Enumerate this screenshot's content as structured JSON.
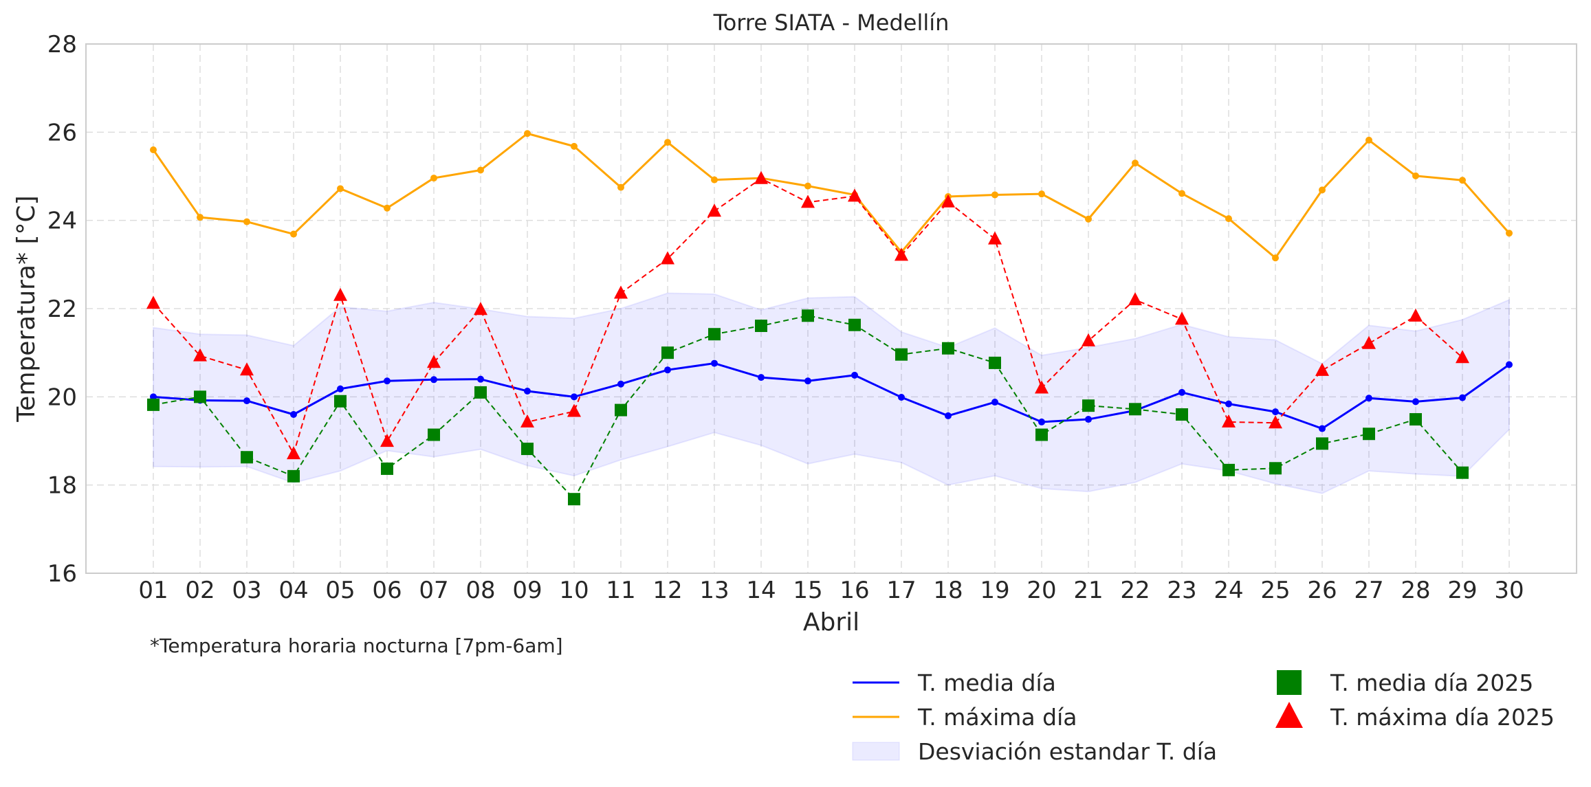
{
  "chart_data": {
    "type": "line",
    "title": "Torre SIATA - Medellín",
    "xlabel": "Abril",
    "ylabel": "Temperatura* [°C]",
    "note": "*Temperatura horaria nocturna [7pm-6am]",
    "ylim": [
      16,
      28
    ],
    "yticks": [
      16,
      18,
      20,
      22,
      24,
      26,
      28
    ],
    "grid": true,
    "legend_position": "bottom-right",
    "categories": [
      "01",
      "02",
      "03",
      "04",
      "05",
      "06",
      "07",
      "08",
      "09",
      "10",
      "11",
      "12",
      "13",
      "14",
      "15",
      "16",
      "17",
      "18",
      "19",
      "20",
      "21",
      "22",
      "23",
      "24",
      "25",
      "26",
      "27",
      "28",
      "29",
      "30"
    ],
    "series": [
      {
        "name": "T. media día",
        "style": "line",
        "color": "#0000ff",
        "values": [
          20.0,
          19.92,
          19.91,
          19.6,
          20.18,
          20.36,
          20.39,
          20.4,
          20.13,
          20.0,
          20.29,
          20.61,
          20.76,
          20.44,
          20.36,
          20.49,
          19.99,
          19.57,
          19.88,
          19.43,
          19.49,
          19.69,
          20.1,
          19.84,
          19.66,
          19.28,
          19.97,
          19.89,
          19.98,
          20.73
        ]
      },
      {
        "name": "T. máxima día",
        "style": "line",
        "color": "#ffa500",
        "values": [
          25.6,
          24.07,
          23.97,
          23.69,
          24.72,
          24.28,
          24.96,
          25.14,
          25.97,
          25.68,
          24.75,
          25.77,
          24.92,
          24.96,
          24.78,
          24.58,
          23.28,
          24.54,
          24.58,
          24.6,
          24.03,
          25.3,
          24.61,
          24.04,
          23.15,
          24.69,
          25.82,
          25.01,
          24.91,
          23.71
        ]
      },
      {
        "name": "Desviación estandar T. día",
        "style": "band",
        "color": "#0000ff",
        "upper": [
          21.57,
          21.42,
          21.4,
          21.16,
          22.04,
          21.94,
          22.14,
          21.99,
          21.82,
          21.78,
          22.0,
          22.35,
          22.33,
          21.97,
          22.24,
          22.27,
          21.47,
          21.12,
          21.56,
          20.94,
          21.12,
          21.32,
          21.64,
          21.36,
          21.29,
          20.75,
          21.62,
          21.49,
          21.75,
          22.2
        ],
        "lower": [
          18.42,
          18.41,
          18.42,
          18.05,
          18.32,
          18.78,
          18.64,
          18.81,
          18.44,
          18.21,
          18.57,
          18.87,
          19.19,
          18.9,
          18.48,
          18.7,
          18.51,
          18.0,
          18.21,
          17.92,
          17.85,
          18.06,
          18.48,
          18.32,
          18.03,
          17.81,
          18.32,
          18.25,
          18.2,
          19.26
        ]
      },
      {
        "name": "T. media día 2025",
        "style": "dashed-marker",
        "marker": "square",
        "color": "#008000",
        "values": [
          19.82,
          20.0,
          18.63,
          18.2,
          19.9,
          18.37,
          19.14,
          20.1,
          18.82,
          17.68,
          19.7,
          21.0,
          21.42,
          21.61,
          21.84,
          21.63,
          20.96,
          21.1,
          20.77,
          19.14,
          19.8,
          19.72,
          19.6,
          18.34,
          18.38,
          18.94,
          19.16,
          19.49,
          18.28,
          null
        ]
      },
      {
        "name": "T. máxima día 2025",
        "style": "dashed-marker",
        "marker": "triangle",
        "color": "#ff0000",
        "values": [
          22.12,
          20.93,
          20.61,
          18.71,
          22.3,
          18.99,
          20.78,
          21.98,
          19.43,
          19.67,
          22.35,
          23.13,
          24.21,
          24.95,
          24.41,
          24.55,
          23.21,
          24.42,
          23.58,
          20.2,
          21.27,
          22.2,
          21.76,
          19.43,
          19.41,
          20.6,
          21.21,
          21.83,
          20.89,
          null
        ]
      }
    ]
  }
}
